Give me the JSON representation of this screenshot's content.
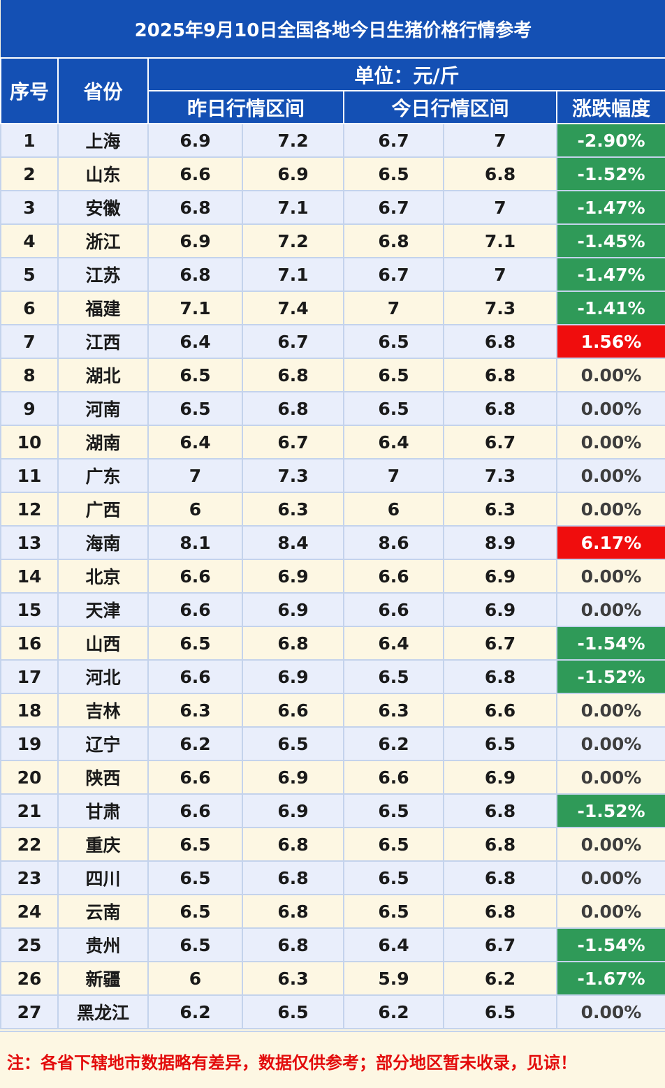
{
  "title": "2025年9月10日全国各地今日生猪价格行情参考",
  "headers": {
    "index": "序号",
    "province": "省份",
    "unit": "单位：元/斤",
    "yesterday": "昨日行情区间",
    "today": "今日行情区间",
    "change": "涨跌幅度"
  },
  "colors": {
    "header_bg": "#1450b4",
    "down": "#2f9a58",
    "up": "#f00d0d",
    "note": "#e30c0c"
  },
  "rows": [
    {
      "no": "1",
      "province": "上海",
      "y_low": "6.9",
      "y_high": "7.2",
      "t_low": "6.7",
      "t_high": "7",
      "change": "-2.90%",
      "trend": "down"
    },
    {
      "no": "2",
      "province": "山东",
      "y_low": "6.6",
      "y_high": "6.9",
      "t_low": "6.5",
      "t_high": "6.8",
      "change": "-1.52%",
      "trend": "down"
    },
    {
      "no": "3",
      "province": "安徽",
      "y_low": "6.8",
      "y_high": "7.1",
      "t_low": "6.7",
      "t_high": "7",
      "change": "-1.47%",
      "trend": "down"
    },
    {
      "no": "4",
      "province": "浙江",
      "y_low": "6.9",
      "y_high": "7.2",
      "t_low": "6.8",
      "t_high": "7.1",
      "change": "-1.45%",
      "trend": "down"
    },
    {
      "no": "5",
      "province": "江苏",
      "y_low": "6.8",
      "y_high": "7.1",
      "t_low": "6.7",
      "t_high": "7",
      "change": "-1.47%",
      "trend": "down"
    },
    {
      "no": "6",
      "province": "福建",
      "y_low": "7.1",
      "y_high": "7.4",
      "t_low": "7",
      "t_high": "7.3",
      "change": "-1.41%",
      "trend": "down"
    },
    {
      "no": "7",
      "province": "江西",
      "y_low": "6.4",
      "y_high": "6.7",
      "t_low": "6.5",
      "t_high": "6.8",
      "change": "1.56%",
      "trend": "up"
    },
    {
      "no": "8",
      "province": "湖北",
      "y_low": "6.5",
      "y_high": "6.8",
      "t_low": "6.5",
      "t_high": "6.8",
      "change": "0.00%",
      "trend": "flat"
    },
    {
      "no": "9",
      "province": "河南",
      "y_low": "6.5",
      "y_high": "6.8",
      "t_low": "6.5",
      "t_high": "6.8",
      "change": "0.00%",
      "trend": "flat"
    },
    {
      "no": "10",
      "province": "湖南",
      "y_low": "6.4",
      "y_high": "6.7",
      "t_low": "6.4",
      "t_high": "6.7",
      "change": "0.00%",
      "trend": "flat"
    },
    {
      "no": "11",
      "province": "广东",
      "y_low": "7",
      "y_high": "7.3",
      "t_low": "7",
      "t_high": "7.3",
      "change": "0.00%",
      "trend": "flat"
    },
    {
      "no": "12",
      "province": "广西",
      "y_low": "6",
      "y_high": "6.3",
      "t_low": "6",
      "t_high": "6.3",
      "change": "0.00%",
      "trend": "flat"
    },
    {
      "no": "13",
      "province": "海南",
      "y_low": "8.1",
      "y_high": "8.4",
      "t_low": "8.6",
      "t_high": "8.9",
      "change": "6.17%",
      "trend": "up"
    },
    {
      "no": "14",
      "province": "北京",
      "y_low": "6.6",
      "y_high": "6.9",
      "t_low": "6.6",
      "t_high": "6.9",
      "change": "0.00%",
      "trend": "flat"
    },
    {
      "no": "15",
      "province": "天津",
      "y_low": "6.6",
      "y_high": "6.9",
      "t_low": "6.6",
      "t_high": "6.9",
      "change": "0.00%",
      "trend": "flat"
    },
    {
      "no": "16",
      "province": "山西",
      "y_low": "6.5",
      "y_high": "6.8",
      "t_low": "6.4",
      "t_high": "6.7",
      "change": "-1.54%",
      "trend": "down"
    },
    {
      "no": "17",
      "province": "河北",
      "y_low": "6.6",
      "y_high": "6.9",
      "t_low": "6.5",
      "t_high": "6.8",
      "change": "-1.52%",
      "trend": "down"
    },
    {
      "no": "18",
      "province": "吉林",
      "y_low": "6.3",
      "y_high": "6.6",
      "t_low": "6.3",
      "t_high": "6.6",
      "change": "0.00%",
      "trend": "flat"
    },
    {
      "no": "19",
      "province": "辽宁",
      "y_low": "6.2",
      "y_high": "6.5",
      "t_low": "6.2",
      "t_high": "6.5",
      "change": "0.00%",
      "trend": "flat"
    },
    {
      "no": "20",
      "province": "陕西",
      "y_low": "6.6",
      "y_high": "6.9",
      "t_low": "6.6",
      "t_high": "6.9",
      "change": "0.00%",
      "trend": "flat"
    },
    {
      "no": "21",
      "province": "甘肃",
      "y_low": "6.6",
      "y_high": "6.9",
      "t_low": "6.5",
      "t_high": "6.8",
      "change": "-1.52%",
      "trend": "down"
    },
    {
      "no": "22",
      "province": "重庆",
      "y_low": "6.5",
      "y_high": "6.8",
      "t_low": "6.5",
      "t_high": "6.8",
      "change": "0.00%",
      "trend": "flat"
    },
    {
      "no": "23",
      "province": "四川",
      "y_low": "6.5",
      "y_high": "6.8",
      "t_low": "6.5",
      "t_high": "6.8",
      "change": "0.00%",
      "trend": "flat"
    },
    {
      "no": "24",
      "province": "云南",
      "y_low": "6.5",
      "y_high": "6.8",
      "t_low": "6.5",
      "t_high": "6.8",
      "change": "0.00%",
      "trend": "flat"
    },
    {
      "no": "25",
      "province": "贵州",
      "y_low": "6.5",
      "y_high": "6.8",
      "t_low": "6.4",
      "t_high": "6.7",
      "change": "-1.54%",
      "trend": "down"
    },
    {
      "no": "26",
      "province": "新疆",
      "y_low": "6",
      "y_high": "6.3",
      "t_low": "5.9",
      "t_high": "6.2",
      "change": "-1.67%",
      "trend": "down"
    },
    {
      "no": "27",
      "province": "黑龙江",
      "y_low": "6.2",
      "y_high": "6.5",
      "t_low": "6.2",
      "t_high": "6.5",
      "change": "0.00%",
      "trend": "flat"
    }
  ],
  "note": "注：各省下辖地市数据略有差异，数据仅供参考；部分地区暂未收录，见谅！"
}
